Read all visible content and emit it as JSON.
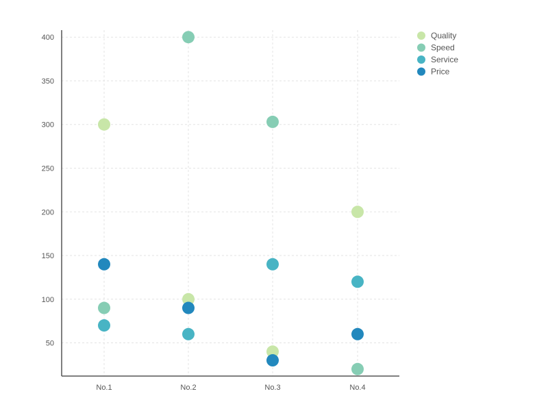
{
  "chart_data": {
    "type": "scatter",
    "title": "",
    "xlabel": "",
    "ylabel": "",
    "categories": [
      "No.1",
      "No.2",
      "No.3",
      "No.4"
    ],
    "ylim": [
      12,
      408
    ],
    "yticks": [
      50,
      100,
      150,
      200,
      250,
      300,
      350,
      400
    ],
    "grid": true,
    "legend_position": "top-right",
    "series": [
      {
        "name": "Quality",
        "color": "#c8e6a8",
        "values": [
          300,
          100,
          40,
          200
        ]
      },
      {
        "name": "Speed",
        "color": "#86cdb4",
        "values": [
          90,
          400,
          303,
          20
        ]
      },
      {
        "name": "Service",
        "color": "#48b4c4",
        "values": [
          70,
          60,
          140,
          120
        ]
      },
      {
        "name": "Price",
        "color": "#2288bd",
        "values": [
          140,
          90,
          30,
          60
        ]
      }
    ]
  }
}
